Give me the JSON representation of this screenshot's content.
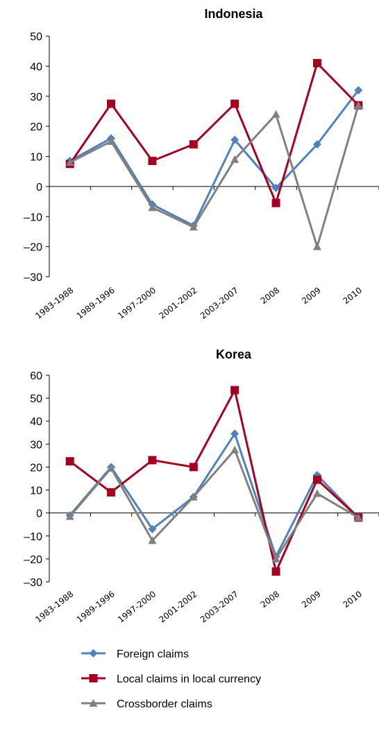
{
  "colors": {
    "Foreign claims": "#4f81bd",
    "Local claims in local currency": "#a50021",
    "Crossborder claims": "#808080"
  },
  "markers": {
    "Foreign claims": "diamond",
    "Local claims in local currency": "square",
    "Crossborder claims": "triangle"
  },
  "legend": {
    "position": "bottom",
    "items": [
      "Foreign claims",
      "Local claims in local currency",
      "Crossborder claims"
    ]
  },
  "chart_data": [
    {
      "type": "line",
      "title": "Indonesia",
      "categories": [
        "1983-1988",
        "1989-1996",
        "1997-2000",
        "2001-2002",
        "2003-2007",
        "2008",
        "2009",
        "2010"
      ],
      "ylim": [
        -30,
        50
      ],
      "yticks": [
        -30,
        -20,
        -10,
        0,
        10,
        20,
        30,
        40,
        50
      ],
      "grid": false,
      "series": [
        {
          "name": "Foreign claims",
          "values": [
            8.5,
            16,
            -6,
            -13,
            15.5,
            -0.5,
            14,
            32
          ]
        },
        {
          "name": "Local claims in local currency",
          "values": [
            7.5,
            27.5,
            8.5,
            14,
            27.5,
            -5.5,
            41,
            27
          ]
        },
        {
          "name": "Crossborder claims",
          "values": [
            8,
            15,
            -7,
            -13.5,
            9,
            24,
            -20,
            27
          ]
        }
      ]
    },
    {
      "type": "line",
      "title": "Korea",
      "categories": [
        "1983-1988",
        "1989-1996",
        "1997-2000",
        "2001-2002",
        "2003-2007",
        "2008",
        "2009",
        "2010"
      ],
      "ylim": [
        -30,
        60
      ],
      "yticks": [
        -30,
        -20,
        -10,
        0,
        10,
        20,
        30,
        40,
        50,
        60
      ],
      "grid": false,
      "series": [
        {
          "name": "Foreign claims",
          "values": [
            -1,
            20,
            -7,
            7,
            34.5,
            -19,
            16.5,
            -2
          ]
        },
        {
          "name": "Local claims in local currency",
          "values": [
            22.5,
            9,
            23,
            20,
            53.5,
            -25.5,
            14.5,
            -2
          ]
        },
        {
          "name": "Crossborder claims",
          "values": [
            -1.5,
            19.5,
            -12,
            7,
            27.5,
            -20,
            8.5,
            -2
          ]
        }
      ]
    }
  ]
}
